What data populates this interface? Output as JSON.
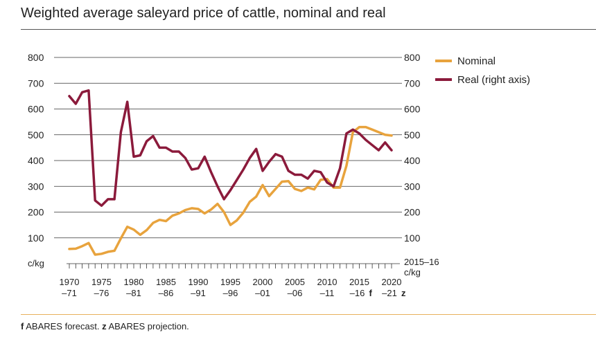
{
  "chart_data": {
    "type": "line",
    "title": "Weighted average saleyard price of cattle, nominal and real",
    "y_left_label": "c/kg",
    "y_right_label": [
      "2015–16",
      "c/kg"
    ],
    "ylim": [
      0,
      800
    ],
    "yticks": [
      100,
      200,
      300,
      400,
      500,
      600,
      700,
      800
    ],
    "xlim": [
      1970,
      2020
    ],
    "x_major_ticks": [
      {
        "year": 1970,
        "line1": "1970",
        "line2": "–71"
      },
      {
        "year": 1975,
        "line1": "1975",
        "line2": "–76"
      },
      {
        "year": 1980,
        "line1": "1980",
        "line2": "–81"
      },
      {
        "year": 1985,
        "line1": "1985",
        "line2": "–86"
      },
      {
        "year": 1990,
        "line1": "1990",
        "line2": "–91"
      },
      {
        "year": 1995,
        "line1": "1995",
        "line2": "–96"
      },
      {
        "year": 2000,
        "line1": "2000",
        "line2": "–01"
      },
      {
        "year": 2005,
        "line1": "2005",
        "line2": "–06"
      },
      {
        "year": 2010,
        "line1": "2010",
        "line2": "–11"
      },
      {
        "year": 2015,
        "line1": "2015",
        "line2": "–16",
        "suffix": "f"
      },
      {
        "year": 2020,
        "line1": "2020",
        "line2": "–21",
        "suffix": "z"
      }
    ],
    "grid": true,
    "legend_position": "top-right",
    "series": [
      {
        "name": "Nominal",
        "color": "#e8a33d",
        "x": [
          1970,
          1971,
          1972,
          1973,
          1974,
          1975,
          1976,
          1977,
          1978,
          1979,
          1980,
          1981,
          1982,
          1983,
          1984,
          1985,
          1986,
          1987,
          1988,
          1989,
          1990,
          1991,
          1992,
          1993,
          1994,
          1995,
          1996,
          1997,
          1998,
          1999,
          2000,
          2001,
          2002,
          2003,
          2004,
          2005,
          2006,
          2007,
          2008,
          2009,
          2010,
          2011,
          2012,
          2013,
          2014,
          2015,
          2016,
          2017,
          2018,
          2019,
          2020
        ],
        "values": [
          57,
          58,
          68,
          80,
          35,
          38,
          46,
          50,
          98,
          143,
          132,
          112,
          130,
          158,
          170,
          165,
          186,
          195,
          208,
          215,
          212,
          195,
          210,
          232,
          200,
          150,
          168,
          198,
          240,
          260,
          305,
          262,
          290,
          318,
          320,
          290,
          282,
          295,
          288,
          325,
          328,
          295,
          295,
          380,
          510,
          530,
          530,
          520,
          510,
          500,
          497
        ]
      },
      {
        "name": "Real (right axis)",
        "color": "#8b1a3b",
        "x": [
          1970,
          1971,
          1972,
          1973,
          1974,
          1975,
          1976,
          1977,
          1978,
          1979,
          1980,
          1981,
          1982,
          1983,
          1984,
          1985,
          1986,
          1987,
          1988,
          1989,
          1990,
          1991,
          1992,
          1993,
          1994,
          1995,
          1996,
          1997,
          1998,
          1999,
          2000,
          2001,
          2002,
          2003,
          2004,
          2005,
          2006,
          2007,
          2008,
          2009,
          2010,
          2011,
          2012,
          2013,
          2014,
          2015,
          2016,
          2017,
          2018,
          2019,
          2020
        ],
        "values": [
          650,
          620,
          665,
          672,
          245,
          225,
          250,
          250,
          510,
          628,
          415,
          420,
          475,
          495,
          450,
          450,
          435,
          435,
          410,
          365,
          370,
          415,
          355,
          300,
          250,
          285,
          325,
          365,
          410,
          445,
          360,
          395,
          425,
          415,
          360,
          345,
          345,
          330,
          360,
          355,
          315,
          300,
          370,
          505,
          520,
          505,
          480,
          460,
          440,
          470,
          440
        ]
      }
    ]
  },
  "footnote": {
    "f_letter": "f",
    "f_text": " ABARES forecast. ",
    "z_letter": "z",
    "z_text": " ABARES projection."
  }
}
